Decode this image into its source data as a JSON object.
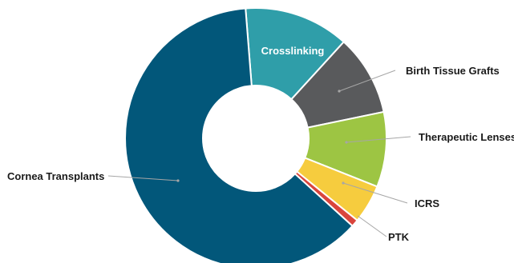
{
  "chart_data": {
    "type": "donut",
    "title": "",
    "colors": {
      "Cornea Transplants": "#02577a",
      "Crosslinking": "#2f9ea9",
      "Birth Tissue Grafts": "#595a5c",
      "Therapeutic Lenses": "#9dc543",
      "ICRS": "#f6cc3e",
      "PTK": "#d9453d"
    },
    "slices": [
      {
        "label": "Crosslinking",
        "value": 13.0
      },
      {
        "label": "Birth Tissue Grafts",
        "value": 10.0
      },
      {
        "label": "Therapeutic Lenses",
        "value": 9.3
      },
      {
        "label": "ICRS",
        "value": 4.8
      },
      {
        "label": "PTK",
        "value": 0.9
      },
      {
        "label": "Cornea Transplants",
        "value": 62.0
      }
    ],
    "start_angle_deg": -4.5,
    "legend": "none",
    "labels_placement": "outside with leader lines (Crosslinking inside)"
  }
}
